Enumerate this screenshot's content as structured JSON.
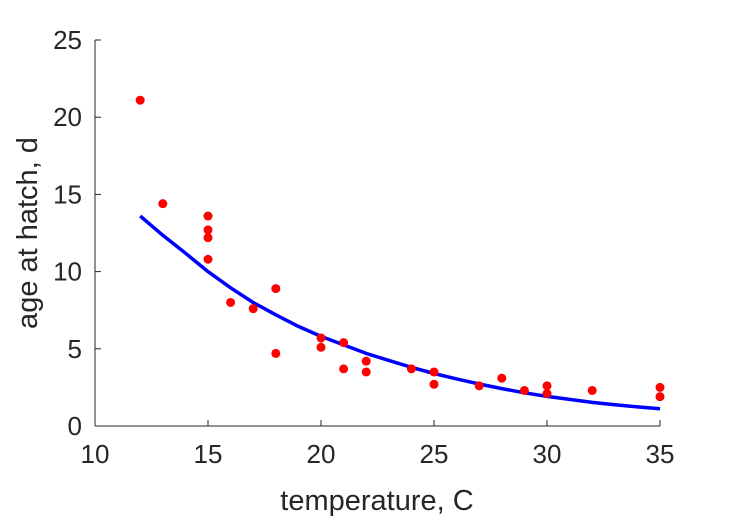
{
  "chart_data": {
    "type": "scatter",
    "title": "",
    "xlabel": "temperature, C",
    "ylabel": "age at hatch, d",
    "xlim": [
      10,
      35
    ],
    "ylim": [
      0,
      25
    ],
    "xticks": [
      "10",
      "15",
      "20",
      "25",
      "30",
      "35"
    ],
    "yticks": [
      "0",
      "5",
      "10",
      "15",
      "20",
      "25"
    ],
    "grid": false,
    "legend": "none",
    "series": [
      {
        "kind": "points",
        "color": "#ff0000",
        "x": [
          12,
          13,
          15,
          15,
          15,
          15,
          16,
          17,
          18,
          18,
          20,
          20,
          21,
          21,
          22,
          22,
          24,
          25,
          25,
          27,
          28,
          29,
          30,
          30,
          32,
          35,
          35
        ],
        "y": [
          21.1,
          14.4,
          13.6,
          12.7,
          12.2,
          10.8,
          8.0,
          7.6,
          8.9,
          4.7,
          5.7,
          5.1,
          5.4,
          3.7,
          4.2,
          3.5,
          3.7,
          3.5,
          2.7,
          2.6,
          3.1,
          2.3,
          2.6,
          2.1,
          2.3,
          2.5,
          1.9
        ]
      },
      {
        "kind": "fit-line",
        "color": "#0000ff",
        "x": [
          12,
          13,
          14,
          15,
          16,
          17,
          18,
          19,
          20,
          21,
          22,
          23,
          24,
          25,
          26,
          27,
          28,
          29,
          30,
          31,
          32,
          33,
          34,
          35
        ],
        "y": [
          13.6,
          12.35,
          11.2,
          10.0,
          8.95,
          8.0,
          7.2,
          6.45,
          5.8,
          5.25,
          4.7,
          4.25,
          3.8,
          3.4,
          3.05,
          2.72,
          2.42,
          2.15,
          1.92,
          1.72,
          1.53,
          1.37,
          1.24,
          1.12
        ]
      }
    ]
  }
}
